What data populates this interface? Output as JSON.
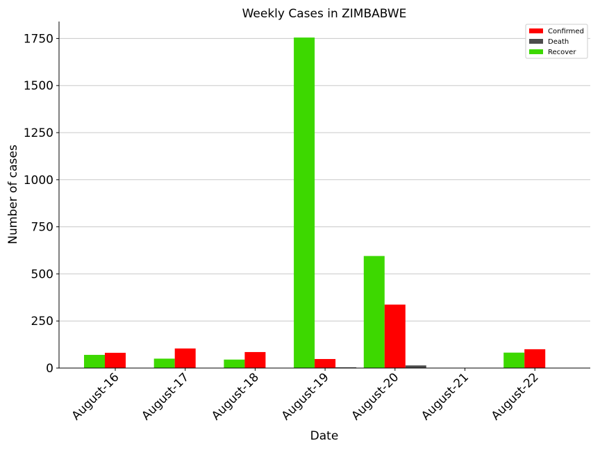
{
  "chart_data": {
    "type": "bar",
    "title": "Weekly Cases in ZIMBABWE",
    "xlabel": "Date",
    "ylabel": "Number of cases",
    "categories": [
      "August-16",
      "August-17",
      "August-18",
      "August-19",
      "August-20",
      "August-21",
      "August-22"
    ],
    "series": [
      {
        "name": "Recover",
        "color": "#3dd800",
        "values": [
          70,
          50,
          45,
          1755,
          595,
          0,
          82
        ]
      },
      {
        "name": "Confirmed",
        "color": "#ff0000",
        "values": [
          81,
          104,
          85,
          48,
          337,
          0,
          100
        ]
      },
      {
        "name": "Death",
        "color": "#4c4c4c",
        "values": [
          0,
          0,
          0,
          4,
          14,
          0,
          0
        ]
      }
    ],
    "legend_order": [
      "Confirmed",
      "Death",
      "Recover"
    ],
    "legend_position": "top-right",
    "ylim": [
      0,
      1840
    ],
    "yticks": [
      0,
      250,
      500,
      750,
      1000,
      1250,
      1500,
      1750
    ],
    "grid": "y"
  }
}
